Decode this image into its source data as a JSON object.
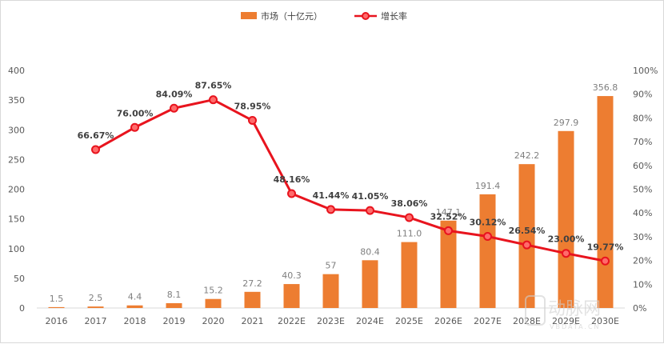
{
  "chart_data": {
    "type": "bar+line",
    "categories": [
      "2016",
      "2017",
      "2018",
      "2019",
      "2020",
      "2021",
      "2022E",
      "2023E",
      "2024E",
      "2025E",
      "2026E",
      "2027E",
      "2028E",
      "2029E",
      "2030E"
    ],
    "series": [
      {
        "name": "市场（十亿元）",
        "type": "bar",
        "axis": "left",
        "values": [
          1.5,
          2.5,
          4.4,
          8.1,
          15.2,
          27.2,
          40.3,
          57,
          80.4,
          111.0,
          147.1,
          191.4,
          242.2,
          297.9,
          356.8
        ],
        "labels": [
          "1.5",
          "2.5",
          "4.4",
          "8.1",
          "15.2",
          "27.2",
          "40.3",
          "57",
          "80.4",
          "111.0",
          "147.1",
          "191.4",
          "242.2",
          "297.9",
          "356.8"
        ]
      },
      {
        "name": "增长率",
        "type": "line",
        "axis": "right",
        "values": [
          null,
          66.67,
          76.0,
          84.09,
          87.65,
          78.95,
          48.16,
          41.44,
          41.05,
          38.06,
          32.52,
          30.12,
          26.54,
          23.0,
          19.77
        ],
        "labels": [
          "",
          "66.67%",
          "76.00%",
          "84.09%",
          "87.65%",
          "78.95%",
          "48.16%",
          "41.44%",
          "41.05%",
          "38.06%",
          "32.52%",
          "30.12%",
          "26.54%",
          "23.00%",
          "19.77%"
        ]
      }
    ],
    "y_left": {
      "min": 0,
      "max": 400,
      "ticks": [
        "0",
        "50",
        "100",
        "150",
        "200",
        "250",
        "300",
        "350",
        "400"
      ]
    },
    "y_right": {
      "min": 0,
      "max": 100,
      "ticks": [
        "0%",
        "10%",
        "20%",
        "30%",
        "40%",
        "50%",
        "60%",
        "70%",
        "80%",
        "90%",
        "100%"
      ]
    },
    "legend_position": "top-center",
    "colors": {
      "bar": "#ed7d31",
      "line": "#e8141e",
      "marker_fill": "#ff6b6b"
    }
  },
  "watermark": {
    "logo_text": "动脉网",
    "url": "VBDATA.CN"
  }
}
